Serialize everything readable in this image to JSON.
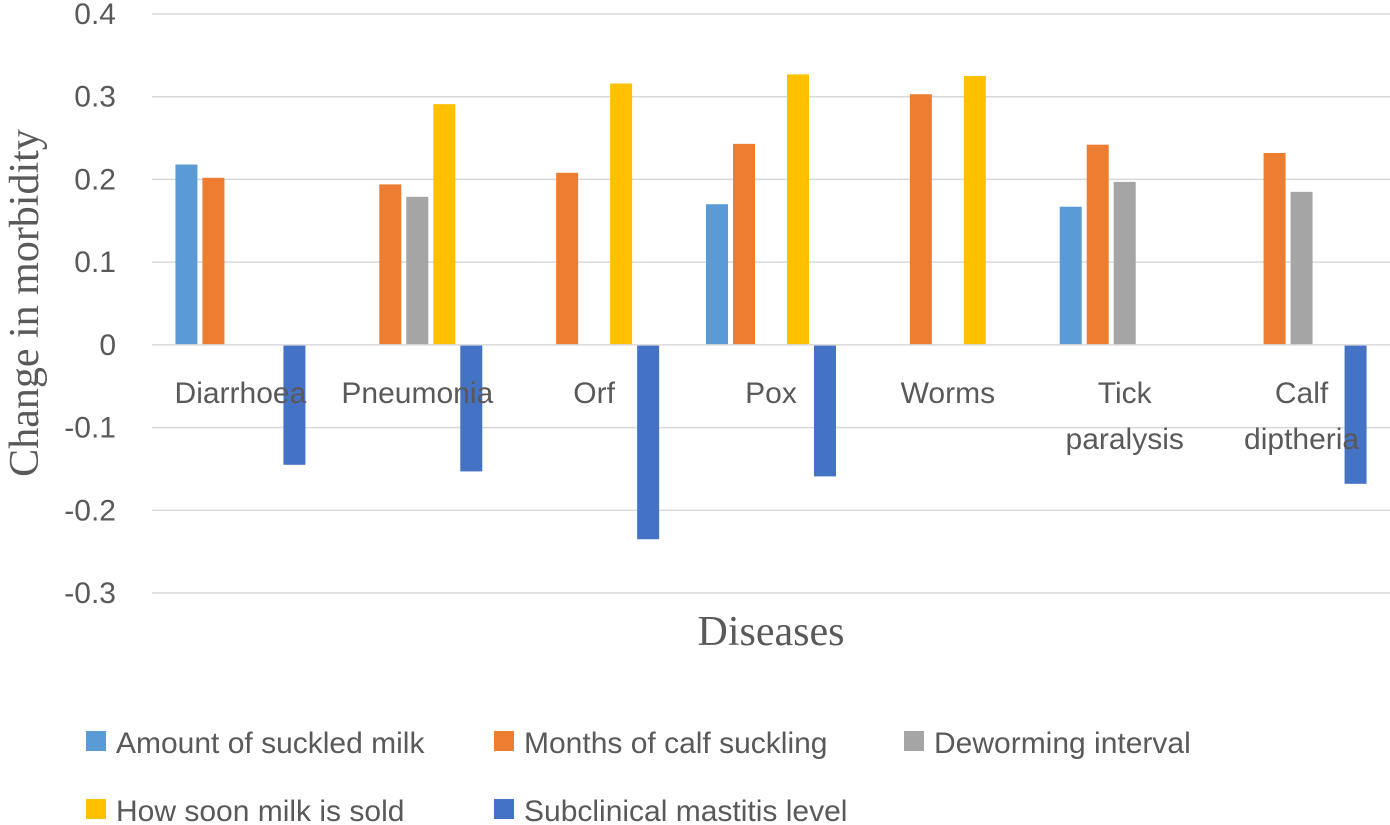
{
  "chart_data": {
    "type": "bar",
    "title": "",
    "xlabel": "Diseases",
    "ylabel": "Change in morbidity",
    "ylim": [
      -0.3,
      0.4
    ],
    "yticks": [
      "0.4",
      "0.3",
      "0.2",
      "0.1",
      "0",
      "-0.1",
      "-0.2",
      "-0.3"
    ],
    "ytick_values": [
      0.4,
      0.3,
      0.2,
      0.1,
      0,
      -0.1,
      -0.2,
      -0.3
    ],
    "grid": true,
    "legend_position": "bottom",
    "categories": [
      [
        "Diarrhoea"
      ],
      [
        "Pneumonia"
      ],
      [
        "Orf"
      ],
      [
        "Pox"
      ],
      [
        "Worms"
      ],
      [
        "Tick",
        "paralysis"
      ],
      [
        "Calf",
        "diptheria"
      ]
    ],
    "series": [
      {
        "name": "Amount of suckled milk",
        "color": "#5B9BD5",
        "values": [
          0.218,
          null,
          null,
          0.17,
          null,
          0.167,
          null
        ]
      },
      {
        "name": "Months of calf suckling",
        "color": "#ED7D31",
        "values": [
          0.202,
          0.194,
          0.208,
          0.243,
          0.303,
          0.242,
          0.232
        ]
      },
      {
        "name": "Deworming interval",
        "color": "#A5A5A5",
        "values": [
          null,
          0.179,
          null,
          null,
          null,
          0.197,
          0.185
        ]
      },
      {
        "name": "How soon milk is sold",
        "color": "#FFC000",
        "values": [
          null,
          0.291,
          0.316,
          0.327,
          0.325,
          null,
          null
        ]
      },
      {
        "name": "Subclinical mastitis level",
        "color": "#4472C4",
        "values": [
          -0.145,
          -0.153,
          -0.235,
          -0.159,
          null,
          null,
          -0.168
        ]
      }
    ]
  }
}
